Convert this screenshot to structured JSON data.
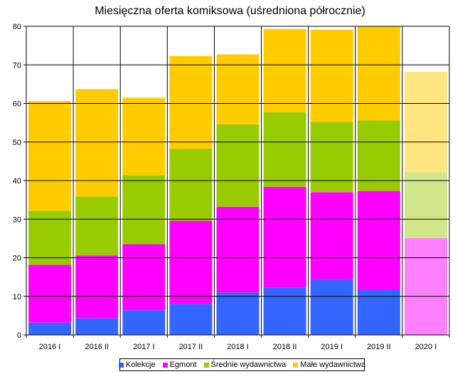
{
  "chart_data": {
    "type": "bar",
    "stacked": true,
    "title": "Miesięczna oferta komiksowa (uśredniona półrocznie)",
    "xlabel": "",
    "ylabel": "",
    "ylim": [
      0,
      80
    ],
    "yticks": [
      0,
      10,
      20,
      30,
      40,
      50,
      60,
      70,
      80
    ],
    "grid": "horizontal and vertical",
    "legend_position": "bottom",
    "categories": [
      "2016 I",
      "2016 II",
      "2017 I",
      "2017 II",
      "2018 I",
      "2018 II",
      "2019 I",
      "2019 II",
      "2020 I"
    ],
    "series": [
      {
        "name": "Kolekcje",
        "color": "#3366ff",
        "values": [
          3.2,
          4.3,
          6.4,
          8.0,
          11.0,
          12.2,
          14.3,
          11.7,
          0
        ]
      },
      {
        "name": "Egmont",
        "color": "#ff00ff",
        "values": [
          15.0,
          16.3,
          17.1,
          21.6,
          22.2,
          26.2,
          22.7,
          25.6,
          25.1
        ]
      },
      {
        "name": "Średnie wydawnictwa",
        "color": "#99cc00",
        "values": [
          14.0,
          15.3,
          17.9,
          18.6,
          21.4,
          19.3,
          18.2,
          18.3,
          17.1
        ]
      },
      {
        "name": "Małe wydawnictwa",
        "color": "#ffcc00",
        "values": [
          28.4,
          27.8,
          20.1,
          24.1,
          18.1,
          21.6,
          23.9,
          24.4,
          26.0
        ]
      }
    ],
    "faded_categories": [
      "2020 I"
    ],
    "faded_colors": {
      "Kolekcje": "#99b2ff",
      "Egmont": "#ff80ff",
      "Średnie wydawnictwa": "#d1e68a",
      "Małe wydawnictwa": "#ffe680"
    }
  }
}
